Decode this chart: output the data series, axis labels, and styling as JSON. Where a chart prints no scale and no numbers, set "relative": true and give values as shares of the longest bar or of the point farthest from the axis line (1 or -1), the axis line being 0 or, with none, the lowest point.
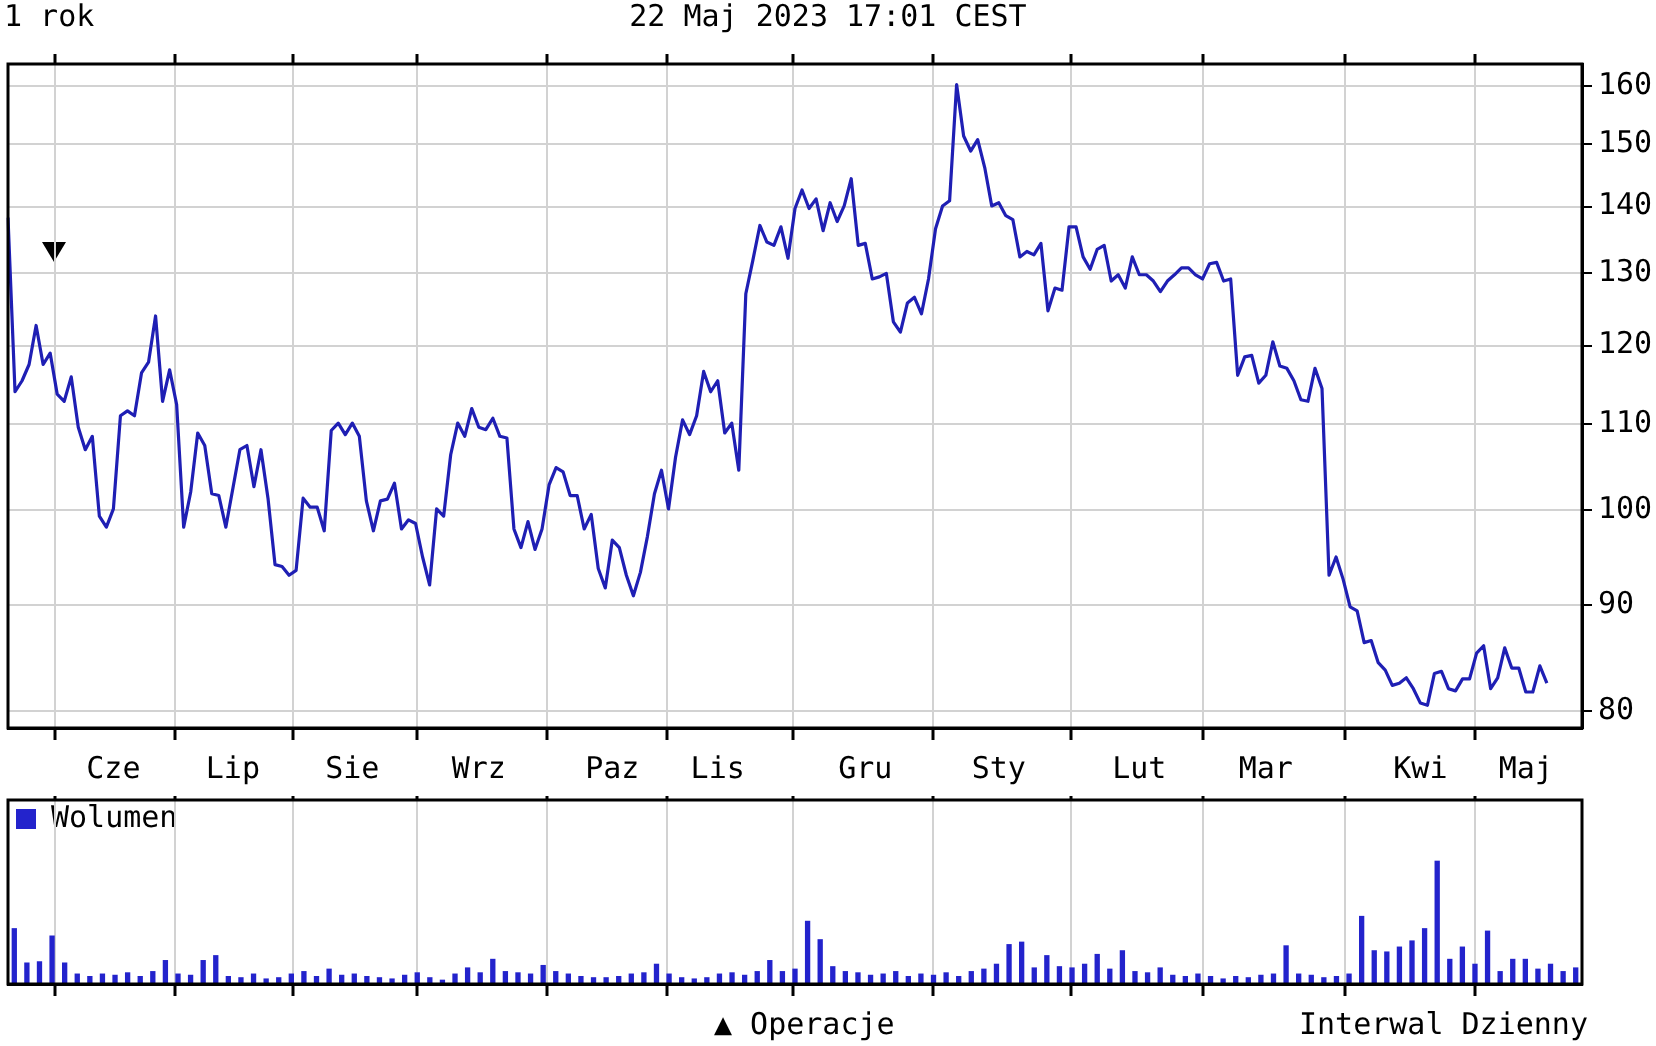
{
  "chart_data": [
    {
      "type": "line",
      "title": "1 rok",
      "subtitle": "22 Maj 2023 17:01 CEST",
      "log": true,
      "grid": true,
      "color": "#1f1fb4",
      "categories": [
        null,
        null,
        null,
        null,
        null,
        null,
        null,
        null,
        null,
        null,
        null,
        null,
        null,
        null,
        null,
        "Cze",
        null,
        null,
        null,
        null,
        null,
        null,
        null,
        null,
        null,
        null,
        null,
        null,
        null,
        null,
        null,
        null,
        "Lip",
        null,
        null,
        null,
        null,
        null,
        null,
        null,
        null,
        null,
        null,
        null,
        null,
        null,
        null,
        null,
        null,
        "Sie",
        null,
        null,
        null,
        null,
        null,
        null,
        null,
        null,
        null,
        null,
        null,
        null,
        null,
        null,
        null,
        null,
        null,
        "Wrz",
        null,
        null,
        null,
        null,
        null,
        null,
        null,
        null,
        null,
        null,
        null,
        null,
        null,
        null,
        null,
        null,
        null,
        null,
        "Paz",
        null,
        null,
        null,
        null,
        null,
        null,
        null,
        null,
        null,
        null,
        null,
        null,
        null,
        null,
        "Lis",
        null,
        null,
        null,
        null,
        null,
        null,
        null,
        null,
        null,
        null,
        null,
        null,
        null,
        null,
        null,
        null,
        null,
        null,
        null,
        null,
        "Gru",
        null,
        null,
        null,
        null,
        null,
        null,
        null,
        null,
        null,
        null,
        null,
        null,
        null,
        null,
        null,
        null,
        null,
        null,
        "Sty",
        null,
        null,
        null,
        null,
        null,
        null,
        null,
        null,
        null,
        null,
        null,
        null,
        null,
        null,
        null,
        null,
        null,
        null,
        null,
        "Lut",
        null,
        null,
        null,
        null,
        null,
        null,
        null,
        null,
        null,
        null,
        null,
        null,
        null,
        null,
        null,
        null,
        null,
        "Mar",
        null,
        null,
        null,
        null,
        null,
        null,
        null,
        null,
        null,
        null,
        null,
        null,
        null,
        null,
        null,
        null,
        null,
        null,
        null,
        null,
        null,
        "Kwi",
        null,
        null,
        null,
        null,
        null,
        null,
        null,
        null,
        null,
        null,
        null,
        null,
        null,
        null,
        "Maj",
        null,
        null,
        null,
        null,
        null,
        null,
        null,
        null
      ],
      "ylim": [
        78.5,
        164
      ],
      "yticks": [
        80,
        90,
        100,
        110,
        120,
        130,
        140,
        150,
        160
      ],
      "values": [
        138.3,
        114.0,
        115.4,
        117.5,
        122.7,
        117.5,
        119.0,
        113.7,
        112.8,
        115.9,
        109.6,
        106.9,
        108.5,
        99.3,
        98.1,
        100.1,
        111.0,
        111.6,
        111.0,
        116.4,
        117.8,
        124.0,
        112.8,
        116.8,
        112.4,
        98.1,
        102.0,
        108.9,
        107.4,
        101.8,
        101.6,
        98.1,
        102.4,
        106.9,
        107.4,
        102.6,
        106.9,
        101.3,
        94.1,
        93.9,
        93.0,
        93.5,
        101.3,
        100.3,
        100.3,
        97.7,
        109.2,
        110.1,
        108.7,
        110.1,
        108.5,
        101.0,
        97.7,
        101.0,
        101.2,
        103.0,
        97.9,
        98.9,
        98.5,
        94.9,
        92.0,
        100.1,
        99.3,
        106.3,
        110.1,
        108.5,
        111.9,
        109.6,
        109.3,
        110.7,
        108.5,
        108.3,
        97.9,
        95.9,
        98.7,
        95.7,
        97.9,
        102.8,
        104.8,
        104.3,
        101.6,
        101.6,
        97.9,
        99.5,
        93.7,
        91.7,
        96.7,
        95.9,
        93.0,
        90.9,
        93.3,
        97.1,
        101.8,
        104.5,
        100.1,
        106.0,
        110.5,
        108.7,
        111.0,
        116.6,
        114.0,
        115.4,
        108.9,
        110.1,
        104.5,
        127.1,
        131.9,
        137.1,
        134.6,
        134.1,
        136.9,
        132.2,
        139.7,
        142.6,
        139.7,
        141.2,
        136.3,
        140.6,
        137.7,
        140.1,
        144.4,
        134.1,
        134.4,
        129.2,
        129.5,
        130.0,
        123.2,
        121.8,
        125.8,
        126.6,
        124.3,
        129.2,
        136.6,
        140.1,
        140.9,
        160.3,
        151.4,
        148.9,
        150.8,
        146.2,
        140.1,
        140.6,
        138.6,
        138.0,
        132.4,
        133.2,
        132.7,
        134.4,
        124.7,
        127.9,
        127.6,
        136.9,
        136.9,
        132.4,
        130.6,
        133.5,
        134.1,
        128.9,
        129.8,
        127.9,
        132.4,
        129.8,
        129.8,
        128.9,
        127.4,
        128.9,
        129.8,
        130.8,
        130.8,
        129.8,
        129.2,
        131.4,
        131.6,
        128.9,
        129.2,
        116.1,
        118.5,
        118.7,
        115.1,
        116.1,
        120.5,
        117.3,
        117.0,
        115.4,
        113.0,
        112.8,
        117.0,
        114.4,
        93.0,
        94.9,
        92.6,
        89.8,
        89.4,
        86.3,
        86.5,
        84.4,
        83.7,
        82.3,
        82.5,
        83.0,
        82.0,
        80.7,
        80.5,
        83.4,
        83.6,
        82.0,
        81.8,
        82.9,
        82.9,
        85.3,
        86.0,
        82.0,
        83.0,
        85.8,
        83.9,
        83.9,
        81.7,
        81.7,
        84.1,
        82.5,
        null,
        null,
        null,
        null,
        null
      ]
    },
    {
      "type": "bar",
      "relative": true,
      "grid": "x",
      "tick_labels": false,
      "legend": "top left",
      "annotations": [
        "▲ Operacje",
        "Interwal Dzienny"
      ],
      "categories": [
        null,
        null,
        null,
        null,
        null,
        null,
        null,
        null,
        null,
        null,
        null,
        null,
        null,
        null,
        null,
        null,
        null,
        null,
        null,
        null,
        null,
        null,
        null,
        null,
        null,
        null,
        null,
        null,
        null,
        null,
        null,
        null,
        null,
        null,
        null,
        null,
        null,
        null,
        null,
        null,
        null,
        null,
        null,
        null,
        null,
        null,
        null,
        null,
        null,
        null,
        null,
        null,
        null,
        null,
        null,
        null,
        null,
        null,
        null,
        null,
        null,
        null,
        null,
        null,
        null,
        null,
        null,
        null,
        null,
        null,
        null,
        null,
        null,
        null,
        null,
        null,
        null,
        null,
        null,
        null,
        null,
        null,
        null,
        null,
        null,
        null,
        null,
        null,
        null,
        null,
        null,
        null,
        null,
        null,
        null,
        null,
        null,
        null,
        null,
        null,
        null,
        null,
        null,
        null,
        null,
        null,
        null,
        null,
        null,
        null,
        null,
        null,
        null,
        null,
        null,
        null,
        null,
        null,
        null,
        null,
        null,
        null,
        null,
        null,
        null
      ],
      "series": [
        {
          "name": "Wolumen",
          "color": "#2323cc",
          "values": [
            0.45,
            0.17,
            0.18,
            0.39,
            0.17,
            0.08,
            0.06,
            0.08,
            0.07,
            0.09,
            0.06,
            0.1,
            0.19,
            0.08,
            0.07,
            0.19,
            0.23,
            0.06,
            0.05,
            0.08,
            0.04,
            0.05,
            0.08,
            0.1,
            0.06,
            0.12,
            0.07,
            0.08,
            0.06,
            0.05,
            0.04,
            0.07,
            0.09,
            0.05,
            0.03,
            0.08,
            0.13,
            0.09,
            0.2,
            0.1,
            0.09,
            0.08,
            0.15,
            0.1,
            0.08,
            0.06,
            0.05,
            0.05,
            0.06,
            0.08,
            0.09,
            0.16,
            0.08,
            0.05,
            0.04,
            0.05,
            0.08,
            0.09,
            0.07,
            0.1,
            0.19,
            0.1,
            0.12,
            0.51,
            0.36,
            0.14,
            0.1,
            0.09,
            0.07,
            0.08,
            0.1,
            0.06,
            0.08,
            0.07,
            0.09,
            0.06,
            0.1,
            0.12,
            0.16,
            0.32,
            0.34,
            0.13,
            0.23,
            0.14,
            0.13,
            0.16,
            0.24,
            0.12,
            0.27,
            0.1,
            0.09,
            0.13,
            0.07,
            0.06,
            0.08,
            0.06,
            0.04,
            0.06,
            0.05,
            0.07,
            0.08,
            0.31,
            0.08,
            0.07,
            0.05,
            0.06,
            0.08,
            0.55,
            0.27,
            0.26,
            0.3,
            0.35,
            0.45,
            1,
            0.2,
            0.3,
            0.16,
            0.43,
            0.1,
            0.2,
            0.2,
            0.12,
            0.16,
            0.1,
            0.13
          ]
        }
      ]
    }
  ]
}
